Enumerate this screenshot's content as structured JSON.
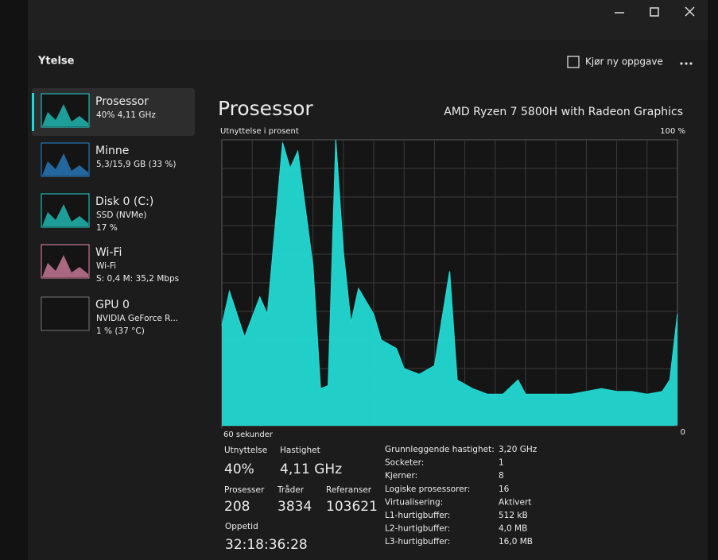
{
  "window": {
    "title": "Ytelse",
    "action": "Kjør ny oppgave"
  },
  "sidebar": [
    {
      "name": "Prosessor",
      "details": [
        "40% 4,11 GHz"
      ]
    },
    {
      "name": "Minne",
      "details": [
        "5,3/15,9 GB (33 %)"
      ]
    },
    {
      "name": "Disk 0 (C:)",
      "details": [
        "SSD (NVMe)",
        "17 %"
      ]
    },
    {
      "name": "Wi-Fi",
      "details": [
        "Wi-Fi",
        "S: 0,4 M: 35,2 Mbps"
      ]
    },
    {
      "name": "GPU 0",
      "details": [
        "NVIDIA GeForce R...",
        "1 % (37 °C)"
      ]
    }
  ],
  "header": {
    "title": "Prosessor",
    "model": "AMD Ryzen 7 5800H with Radeon Graphics"
  },
  "chart_data": {
    "type": "area",
    "ylabel": "Utnyttelse i prosent",
    "color": "#22d8d2",
    "x": [
      60,
      59,
      57,
      55,
      54,
      52,
      51,
      50,
      48,
      47,
      46,
      45,
      44,
      43,
      42,
      40,
      39,
      37,
      36,
      34,
      32,
      30,
      29,
      27,
      25,
      23,
      21,
      20,
      18,
      16,
      14,
      12,
      10,
      8,
      6,
      4,
      2,
      1,
      0
    ],
    "values": [
      35,
      47,
      31,
      45,
      39,
      99,
      90,
      96,
      56,
      13,
      14,
      100,
      61,
      36,
      48,
      39,
      30,
      27,
      20,
      18,
      21,
      54,
      16,
      13,
      11,
      11,
      16,
      11,
      11,
      11,
      11,
      12,
      13,
      12,
      12,
      11,
      12,
      16,
      39
    ],
    "xlim": [
      60,
      0
    ],
    "xticks": [
      {
        "value": 60,
        "label": "60 sekunder"
      }
    ],
    "ylim": [
      0,
      100
    ],
    "yticks": [
      0,
      {
        "value": 100,
        "label": "100 %"
      }
    ]
  },
  "stats": [
    {
      "label": "Utnyttelse",
      "value": "40%"
    },
    {
      "label": "Hastighet",
      "value": "4,11 GHz"
    },
    {
      "label": "Prosesser",
      "value": "208"
    },
    {
      "label": "Tråder",
      "value": "3834"
    },
    {
      "label": "Referanser",
      "value": "103621"
    },
    {
      "label": "Oppetid",
      "value": "32:18:36:28"
    }
  ],
  "specs": [
    [
      "Grunnleggende hastighet:",
      "3,20 GHz"
    ],
    [
      "Socketer:",
      "1"
    ],
    [
      "Kjerner:",
      "8"
    ],
    [
      "Logiske prosessorer:",
      "16"
    ],
    [
      "Virtualisering:",
      "Aktivert"
    ],
    [
      "L1-hurtigbuffer:",
      "512 kB"
    ],
    [
      "L2-hurtigbuffer:",
      "4,0 MB"
    ],
    [
      "L3-hurtigbuffer:",
      "16,0 MB"
    ]
  ]
}
